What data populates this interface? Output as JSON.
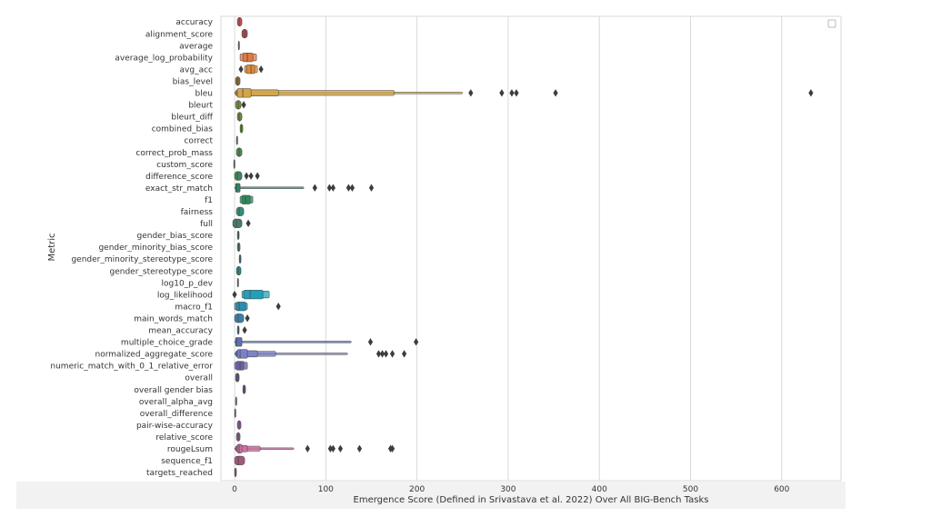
{
  "chart_data": {
    "type": "boxen",
    "xlabel": "Emergence Score (Defined in Srivastava et al. 2022) Over All BIG-Bench Tasks",
    "ylabel": "Metric",
    "xlim": [
      -15,
      665
    ],
    "xticks": [
      0,
      100,
      200,
      300,
      400,
      500,
      600
    ],
    "grid": "vertical",
    "legend": "top-right",
    "categories": [
      {
        "label": "accuracy",
        "color": "#c0504d",
        "boxes": [
          [
            3,
            8
          ]
        ],
        "median": 5,
        "outliers": []
      },
      {
        "label": "alignment_score",
        "color": "#a34a57",
        "boxes": [
          [
            8,
            14
          ]
        ],
        "median": 11,
        "outliers": []
      },
      {
        "label": "average",
        "color": "#b0b0b0",
        "boxes": [
          [
            4,
            5
          ]
        ],
        "median": 4.5,
        "outliers": []
      },
      {
        "label": "average_log_probability",
        "color": "#e07a42",
        "boxes": [
          [
            6,
            24
          ],
          [
            9,
            20
          ]
        ],
        "median": 14,
        "outliers": []
      },
      {
        "label": "avg_acc",
        "color": "#e08a3a",
        "boxes": [
          [
            11,
            25
          ],
          [
            13,
            22
          ]
        ],
        "median": 18,
        "outliers": [
          7,
          29
        ]
      },
      {
        "label": "bias_level",
        "color": "#8a6a3a",
        "boxes": [
          [
            1,
            6
          ]
        ],
        "median": 3,
        "outliers": []
      },
      {
        "label": "bleu",
        "color": "#d4a548",
        "boxes": [
          [
            0,
            250
          ],
          [
            1,
            175
          ],
          [
            2,
            48
          ],
          [
            3,
            18
          ]
        ],
        "median": 9,
        "outliers": [
          259,
          293,
          304,
          309,
          352,
          632
        ]
      },
      {
        "label": "bleurt",
        "color": "#7a8a3a",
        "boxes": [
          [
            1,
            7
          ]
        ],
        "median": 4,
        "outliers": [
          10
        ]
      },
      {
        "label": "bleurt_diff",
        "color": "#6a8a3a",
        "boxes": [
          [
            3,
            8
          ]
        ],
        "median": 5,
        "outliers": []
      },
      {
        "label": "combined_bias",
        "color": "#5a8a3a",
        "boxes": [
          [
            6,
            9
          ]
        ],
        "median": 7.5,
        "outliers": []
      },
      {
        "label": "correct",
        "color": "#b0b0b0",
        "boxes": [
          [
            2,
            3
          ]
        ],
        "median": 2.5,
        "outliers": []
      },
      {
        "label": "correct_prob_mass",
        "color": "#4a8a4a",
        "boxes": [
          [
            2,
            8
          ]
        ],
        "median": 5,
        "outliers": []
      },
      {
        "label": "custom_score",
        "color": "#b0b0b0",
        "boxes": [
          [
            -1,
            0
          ]
        ],
        "median": -0.5,
        "outliers": []
      },
      {
        "label": "difference_score",
        "color": "#3a8a5a",
        "boxes": [
          [
            0,
            8
          ]
        ],
        "median": 3,
        "outliers": [
          13,
          18,
          25
        ]
      },
      {
        "label": "exact_str_match",
        "color": "#2a8a6a",
        "boxes": [
          [
            0,
            76
          ],
          [
            1,
            6
          ]
        ],
        "median": 2,
        "outliers": [
          88,
          104,
          108,
          125,
          129,
          150
        ]
      },
      {
        "label": "f1",
        "color": "#2a8a5a",
        "boxes": [
          [
            6,
            20
          ],
          [
            8,
            17
          ]
        ],
        "median": 12,
        "outliers": []
      },
      {
        "label": "fairness",
        "color": "#3a8a7a",
        "boxes": [
          [
            2,
            10
          ]
        ],
        "median": 5,
        "outliers": []
      },
      {
        "label": "full",
        "color": "#4a7a6a",
        "boxes": [
          [
            -2,
            8
          ]
        ],
        "median": 2,
        "outliers": [
          15
        ]
      },
      {
        "label": "gender_bias_score",
        "color": "#2a8a7a",
        "boxes": [
          [
            3,
            5
          ]
        ],
        "median": 4,
        "outliers": []
      },
      {
        "label": "gender_minority_bias_score",
        "color": "#2a8a8a",
        "boxes": [
          [
            3,
            6
          ]
        ],
        "median": 4.5,
        "outliers": []
      },
      {
        "label": "gender_minority_stereotype_score",
        "color": "#2a8a8a",
        "boxes": [
          [
            5,
            7
          ]
        ],
        "median": 6,
        "outliers": []
      },
      {
        "label": "gender_stereotype_score",
        "color": "#2a8a8a",
        "boxes": [
          [
            2,
            7
          ]
        ],
        "median": 4,
        "outliers": []
      },
      {
        "label": "log10_p_dev",
        "color": "#b0b0b0",
        "boxes": [
          [
            3,
            4
          ]
        ],
        "median": 3.5,
        "outliers": []
      },
      {
        "label": "log_likelihood",
        "color": "#22a0b8",
        "boxes": [
          [
            8,
            38
          ],
          [
            10,
            31
          ]
        ],
        "median": 17,
        "outliers": [
          0
        ]
      },
      {
        "label": "macro_f1",
        "color": "#2a90b0",
        "boxes": [
          [
            0,
            14
          ],
          [
            2,
            12
          ]
        ],
        "median": 5,
        "outliers": [
          48
        ]
      },
      {
        "label": "main_words_match",
        "color": "#3a80a8",
        "boxes": [
          [
            0,
            10
          ]
        ],
        "median": 4,
        "outliers": [
          14
        ]
      },
      {
        "label": "mean_accuracy",
        "color": "#4a78a8",
        "boxes": [
          [
            3,
            5
          ]
        ],
        "median": 4,
        "outliers": [
          11
        ]
      },
      {
        "label": "multiple_choice_grade",
        "color": "#5a70b0",
        "boxes": [
          [
            0,
            128
          ],
          [
            1,
            8
          ]
        ],
        "median": 2,
        "outliers": [
          149,
          199
        ]
      },
      {
        "label": "normalized_aggregate_score",
        "color": "#7a80c8",
        "boxes": [
          [
            0,
            124
          ],
          [
            1,
            45
          ],
          [
            2,
            25
          ],
          [
            3,
            14
          ]
        ],
        "median": 6,
        "outliers": [
          158,
          162,
          166,
          173,
          186
        ]
      },
      {
        "label": "numeric_match_with_0_1_relative_error",
        "color": "#6a60a8",
        "boxes": [
          [
            0,
            14
          ],
          [
            2,
            10
          ]
        ],
        "median": 6,
        "outliers": []
      },
      {
        "label": "overall",
        "color": "#5a5a7a",
        "boxes": [
          [
            1,
            5
          ]
        ],
        "median": 3,
        "outliers": []
      },
      {
        "label": "overall gender bias",
        "color": "#7a4a9a",
        "boxes": [
          [
            9,
            12
          ]
        ],
        "median": 10.5,
        "outliers": []
      },
      {
        "label": "overall_alpha_avg",
        "color": "#b0b0b0",
        "boxes": [
          [
            1,
            2
          ]
        ],
        "median": 1.5,
        "outliers": []
      },
      {
        "label": "overall_difference",
        "color": "#b0b0b0",
        "boxes": [
          [
            0,
            1
          ]
        ],
        "median": 0.5,
        "outliers": []
      },
      {
        "label": "pair-wise-accuracy",
        "color": "#8a5a9a",
        "boxes": [
          [
            3,
            7
          ]
        ],
        "median": 5,
        "outliers": []
      },
      {
        "label": "relative_score",
        "color": "#8a5a8a",
        "boxes": [
          [
            2,
            6
          ]
        ],
        "median": 4,
        "outliers": []
      },
      {
        "label": "rougeLsum",
        "color": "#d070a0",
        "boxes": [
          [
            0,
            65
          ],
          [
            1,
            28
          ],
          [
            2,
            14
          ],
          [
            3,
            8
          ]
        ],
        "median": 5,
        "outliers": [
          80,
          105,
          108,
          116,
          137,
          171,
          173
        ]
      },
      {
        "label": "sequence_f1",
        "color": "#a05a7a",
        "boxes": [
          [
            0,
            11
          ]
        ],
        "median": 4,
        "outliers": []
      },
      {
        "label": "targets_reached",
        "color": "#b06a7a",
        "boxes": [
          [
            0,
            2
          ]
        ],
        "median": 1,
        "outliers": []
      }
    ]
  }
}
